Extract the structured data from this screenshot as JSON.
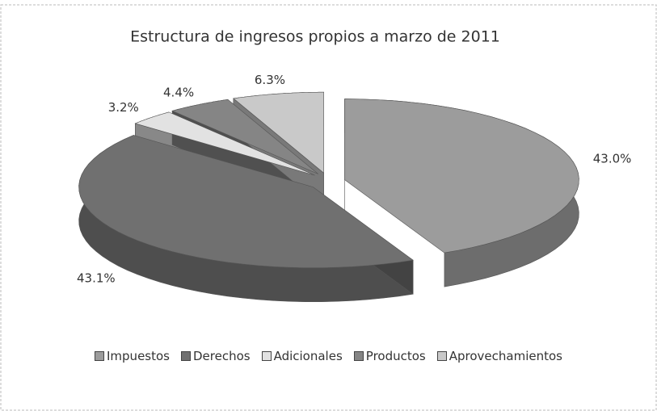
{
  "chart_data": {
    "type": "pie3d",
    "title": "Estructura de ingresos propios a marzo de 2011",
    "categories": [
      "Impuestos",
      "Derechos",
      "Adicionales",
      "Productos",
      "Aprovechamientos"
    ],
    "values": [
      43.0,
      43.1,
      3.2,
      4.4,
      6.3
    ],
    "value_labels": [
      "43.0%",
      "43.1%",
      "3.2%",
      "4.4%",
      "6.3%"
    ],
    "colors": [
      "#9c9c9c",
      "#707070",
      "#e2e2e2",
      "#858585",
      "#c9c9c9"
    ],
    "legend": "bottom"
  }
}
